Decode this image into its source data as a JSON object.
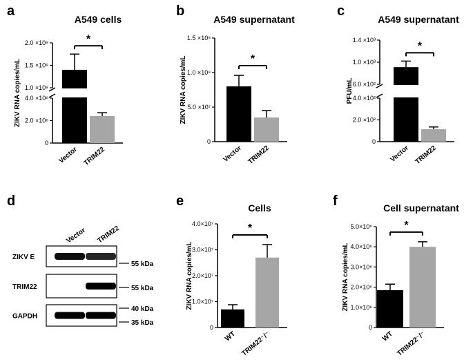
{
  "colors": {
    "bar1": "#000000",
    "bar2": "#a6a6a6",
    "axis": "#000000"
  },
  "chart_data": [
    {
      "panel": "a",
      "type": "bar",
      "title": "A549 cells",
      "ylabel": "ZIKV RNA copies/mL",
      "categories": [
        "Vector",
        "TRIM22"
      ],
      "values": [
        1400000000,
        2400000
      ],
      "errors": [
        350000000,
        300000
      ],
      "broken_axis": true,
      "lower_ylim": [
        0,
        4000000
      ],
      "upper_ylim": [
        1000000000,
        2000000000
      ],
      "lower_ticks": [
        "0",
        "2.0 ×10⁶",
        "4.0 ×10⁶"
      ],
      "upper_ticks": [
        "1.0 ×10⁹",
        "1.5 ×10⁹",
        "2.0 ×10⁹"
      ],
      "significance": "*"
    },
    {
      "panel": "b",
      "type": "bar",
      "title": "A549 supernatant",
      "ylabel": "ZIKV RNA copies/mL",
      "categories": [
        "Vector",
        "TRIM22"
      ],
      "values": [
        80000000,
        35000000
      ],
      "errors": [
        16000000,
        10000000
      ],
      "ylim": [
        0,
        150000000
      ],
      "ticks": [
        "0",
        "5.0 ×10⁷",
        "1.0 ×10⁸",
        "1.5 ×10⁸"
      ],
      "significance": "*"
    },
    {
      "panel": "c",
      "type": "bar",
      "title": "A549 supernatant",
      "ylabel": "PFU/mL",
      "categories": [
        "Vector",
        "TRIM22"
      ],
      "values": [
        910,
        115
      ],
      "errors": [
        110,
        20
      ],
      "broken_axis": true,
      "lower_ylim": [
        0,
        400
      ],
      "upper_ylim": [
        600,
        1400
      ],
      "lower_ticks": [
        "0",
        "2.0 ×10²",
        "4.0 ×10²"
      ],
      "upper_ticks": [
        "6.0 ×10²",
        "1.0 ×10³",
        "1.4 ×10³"
      ],
      "significance": "*"
    },
    {
      "panel": "e",
      "type": "bar",
      "title": "Cells",
      "ylabel": "ZIKV RNA copies/mL",
      "categories": [
        "WT",
        "TRIM22⁻/⁻"
      ],
      "values": [
        7000000,
        27000000
      ],
      "errors": [
        1800000,
        5000000
      ],
      "ylim": [
        0,
        40000000
      ],
      "ticks": [
        "0",
        "1.0×10⁷",
        "2.0×10⁷",
        "3.0×10⁷",
        "4.0×10⁷"
      ],
      "significance": "*"
    },
    {
      "panel": "f",
      "type": "bar",
      "title": "Cell supernatant",
      "ylabel": "ZIKV RNA copies/mL",
      "categories": [
        "WT",
        "TRIM22⁻/⁻"
      ],
      "values": [
        1850000,
        4000000
      ],
      "errors": [
        300000,
        250000
      ],
      "ylim": [
        0,
        5000000
      ],
      "ticks": [
        "0",
        "1.0×10⁶",
        "2.0×10⁶",
        "3.0×10⁶",
        "4.0×10⁶",
        "5.0×10⁶"
      ],
      "significance": "*"
    }
  ],
  "blot": {
    "panel": "d",
    "lanes": [
      "Vector",
      "TRIM22"
    ],
    "rows": [
      {
        "label": "ZIKV E",
        "markers": [
          "55 kDa"
        ],
        "intensity": [
          0.95,
          0.85
        ]
      },
      {
        "label": "TRIM22",
        "markers": [
          "55 kDa"
        ],
        "intensity": [
          0.0,
          1.0
        ]
      },
      {
        "label": "GAPDH",
        "markers": [
          "40 kDa",
          "35 kDa"
        ],
        "intensity": [
          1.0,
          1.0
        ]
      }
    ]
  }
}
